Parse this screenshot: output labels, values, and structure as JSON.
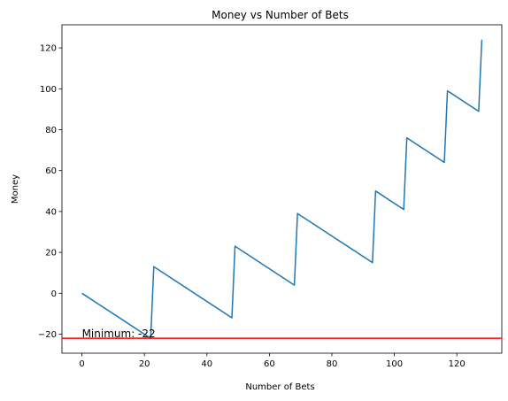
{
  "chart_data": {
    "type": "line",
    "title": "Money vs Number of Bets",
    "xlabel": "Number of Bets",
    "ylabel": "Money",
    "xlim": [
      -6.4,
      134.4
    ],
    "ylim": [
      -29.3,
      131.3
    ],
    "xticks": [
      0,
      20,
      40,
      60,
      80,
      100,
      120
    ],
    "yticks": [
      -20,
      0,
      20,
      40,
      60,
      80,
      100,
      120
    ],
    "grid": false,
    "series": [
      {
        "color": "#1f77b4",
        "x": [
          0,
          21,
          22,
          23,
          47,
          48,
          49,
          68,
          69,
          93,
          94,
          103,
          104,
          116,
          117,
          127,
          128
        ],
        "y": [
          0,
          -21,
          -22,
          13,
          -11,
          -12,
          23,
          4,
          39,
          15,
          50,
          41,
          76,
          64,
          99,
          89,
          124
        ]
      }
    ],
    "hline": {
      "y": -22,
      "color": "#ff0000"
    },
    "annotation": {
      "text": "Minimum: -22",
      "x": 0,
      "y": -22
    }
  }
}
